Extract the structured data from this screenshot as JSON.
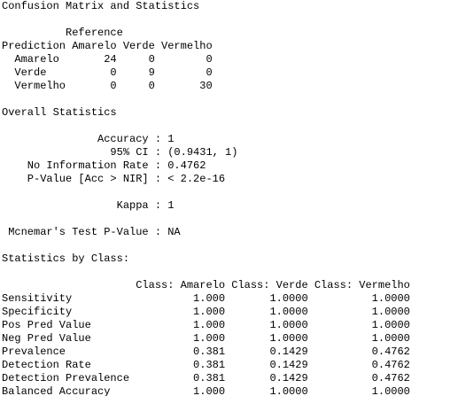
{
  "console": {
    "lines": [
      "Confusion Matrix and Statistics",
      "",
      "          Reference",
      "Prediction Amarelo Verde Vermelho",
      "  Amarelo       24     0        0",
      "  Verde          0     9        0",
      "  Vermelho       0     0       30",
      "",
      "Overall Statistics",
      "",
      "               Accuracy : 1",
      "                 95% CI : (0.9431, 1)",
      "    No Information Rate : 0.4762",
      "    P-Value [Acc > NIR] : < 2.2e-16",
      "",
      "                  Kappa : 1",
      "",
      " Mcnemar's Test P-Value : NA",
      "",
      "Statistics by Class:",
      "",
      "                     Class: Amarelo Class: Verde Class: Vermelho",
      "Sensitivity                   1.000       1.0000          1.0000",
      "Specificity                   1.000       1.0000          1.0000",
      "Pos Pred Value                1.000       1.0000          1.0000",
      "Neg Pred Value                1.000       1.0000          1.0000",
      "Prevalence                    0.381       0.1429          0.4762",
      "Detection Rate                0.381       0.1429          0.4762",
      "Detection Prevalence          0.381       0.1429          0.4762",
      "Balanced Accuracy             1.000       1.0000          1.0000"
    ]
  }
}
